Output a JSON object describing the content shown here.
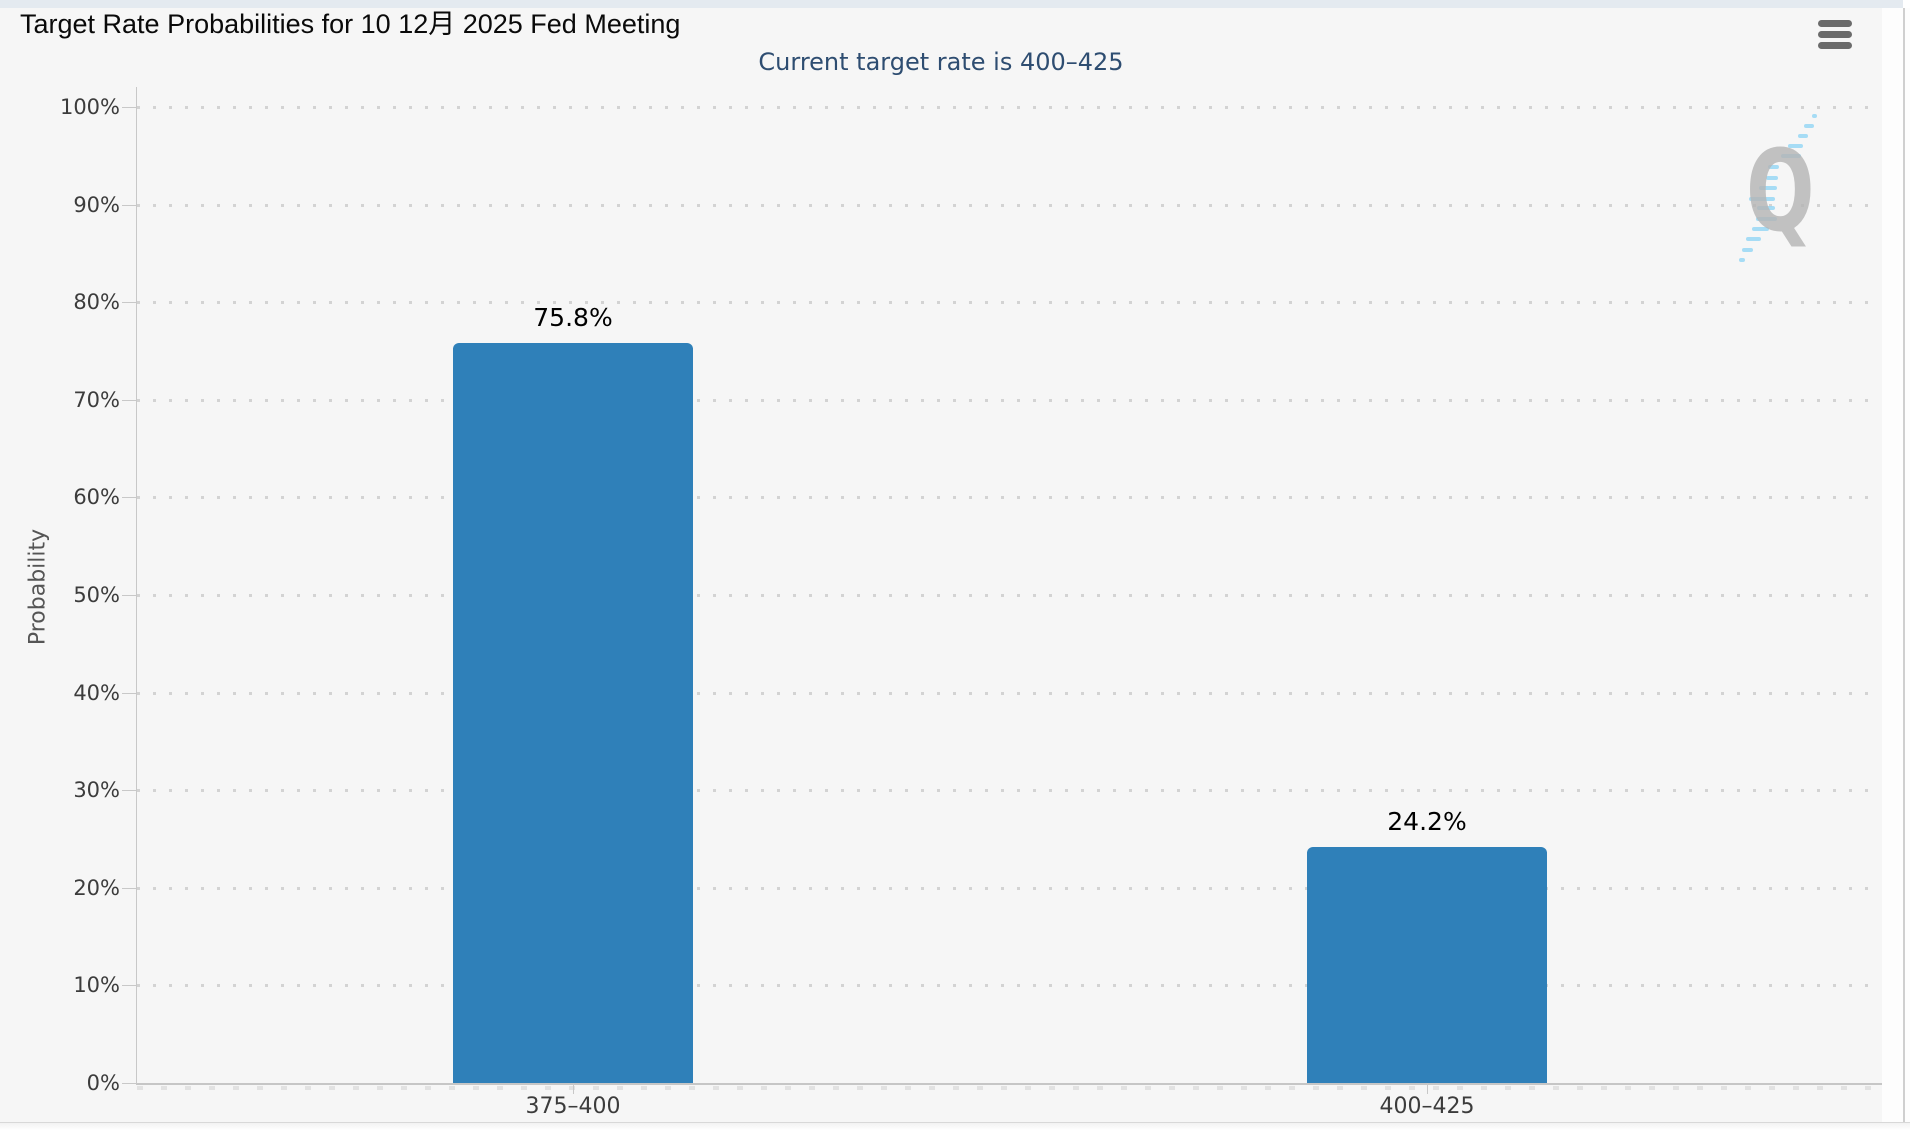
{
  "header": {
    "title": "Target Rate Probabilities for 10 12月 2025 Fed Meeting",
    "menu_icon": "hamburger-icon"
  },
  "chart_data": {
    "type": "bar",
    "title": "Target Rate Probabilities for 10 12月 2025 Fed Meeting",
    "subtitle": "Current target rate is 400–425",
    "current_target_rate": "400–425",
    "xlabel": "",
    "ylabel": "Probability",
    "categories": [
      "375–400",
      "400–425"
    ],
    "values": [
      75.8,
      24.2
    ],
    "value_labels": [
      "75.8%",
      "24.2%"
    ],
    "ylim": [
      0,
      100
    ],
    "ytick_step": 10,
    "ytick_labels": [
      "0%",
      "10%",
      "20%",
      "30%",
      "40%",
      "50%",
      "60%",
      "70%",
      "80%",
      "90%",
      "100%"
    ],
    "grid": "horizontal-dotted",
    "legend": "none",
    "bar_color": "#2f80b9"
  },
  "watermark": {
    "letter": "Q",
    "icon": "q-logo-watermark"
  },
  "colors": {
    "background": "#f6f6f6",
    "top_strip": "#e4eaf0",
    "bar": "#2f80b9",
    "subtitle_text": "#2e4d71",
    "axis": "#c8c8c8",
    "grid_dots": "#d3d3d3",
    "watermark_gray": "#b5b5b5",
    "watermark_blue": "#98d7f4"
  }
}
